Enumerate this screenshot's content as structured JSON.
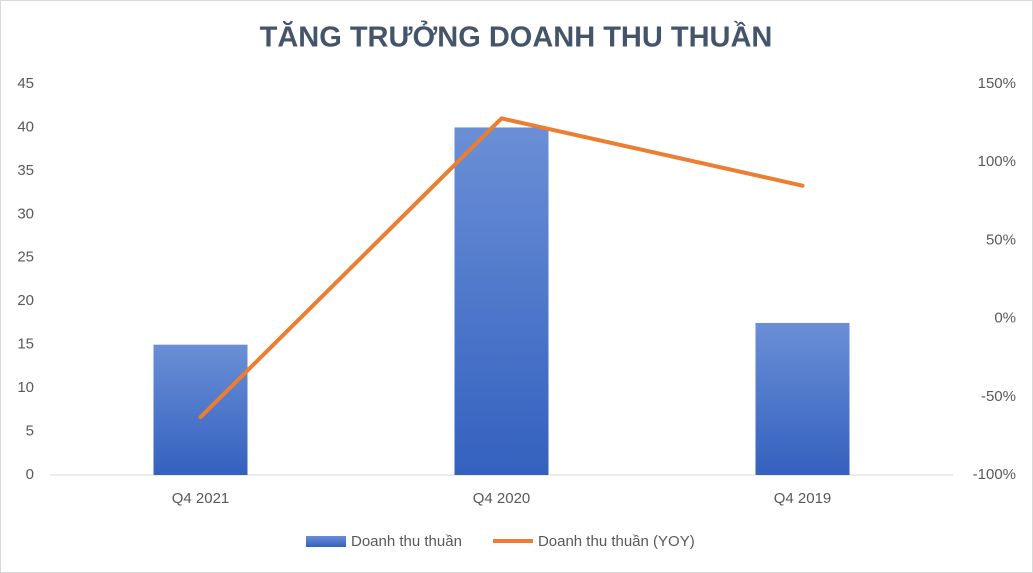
{
  "chart_data": {
    "type": "combo",
    "title": "TĂNG TRƯỞNG DOANH THU THUẦN",
    "categories": [
      "Q4 2021",
      "Q4 2020",
      "Q4 2019"
    ],
    "series": [
      {
        "name": "Doanh thu thuần",
        "type": "bar",
        "color": "#4472c4",
        "values": [
          15,
          40,
          17.5
        ]
      },
      {
        "name": "Doanh thu thuần (YOY)",
        "type": "line",
        "color": "#ed7d31",
        "axis": "y2",
        "values": [
          -63,
          128,
          85
        ]
      }
    ],
    "ylim": [
      0,
      45
    ],
    "yticks": [
      0,
      5,
      10,
      15,
      20,
      25,
      30,
      35,
      40,
      45
    ],
    "y2lim": [
      -100,
      150
    ],
    "y2ticks": [
      {
        "value": -100,
        "label": "-100%"
      },
      {
        "value": -50,
        "label": "-50%"
      },
      {
        "value": 0,
        "label": "0%"
      },
      {
        "value": 50,
        "label": "50%"
      },
      {
        "value": 100,
        "label": "100%"
      },
      {
        "value": 150,
        "label": "150%"
      }
    ],
    "legend": "bottom"
  }
}
